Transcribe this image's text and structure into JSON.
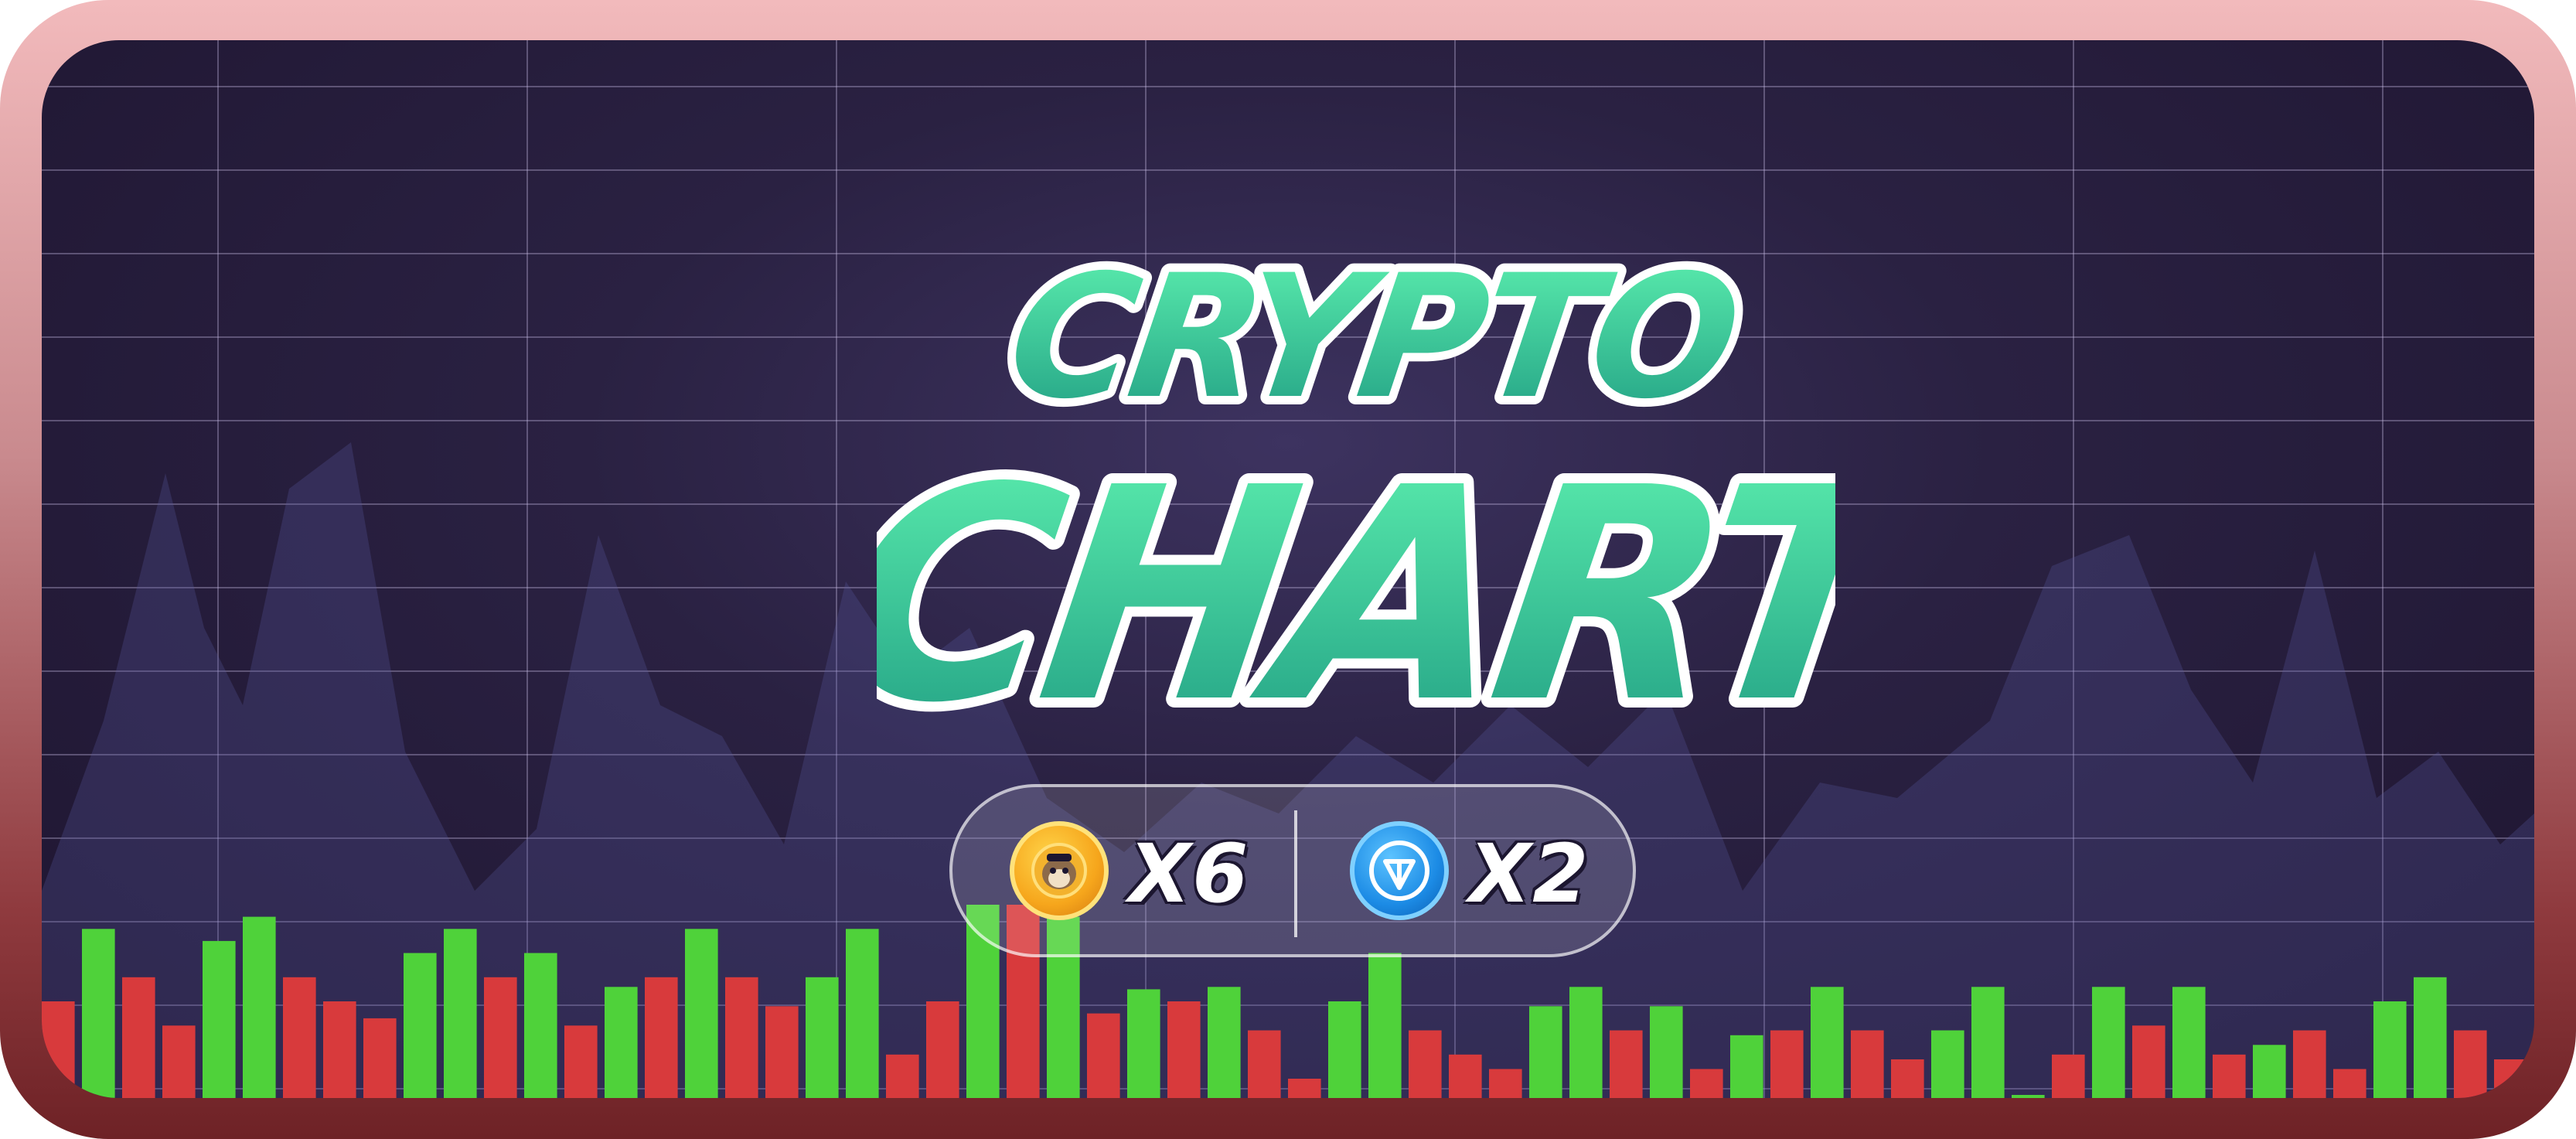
{
  "title": {
    "line1": "CRYPTO",
    "line2": "CHART"
  },
  "rewards": [
    {
      "icon": "hamster-coin-icon",
      "multiplier": "X6"
    },
    {
      "icon": "ton-coin-icon",
      "multiplier": "X2"
    }
  ],
  "colors": {
    "title_fill_top": "#5ef2b0",
    "title_fill_bottom": "#1f9c82",
    "bar_up": "#4fd23a",
    "bar_down": "#d83a3c",
    "background": "#2a2142",
    "frame": "#f2babc"
  },
  "chart_data": {
    "type": "bar",
    "values": [
      4,
      7,
      5,
      3,
      6.5,
      7.5,
      5,
      4,
      3.3,
      6,
      7,
      5,
      6,
      3,
      4.6,
      5,
      7,
      5,
      3.8,
      5,
      7,
      1.8,
      4,
      8,
      8,
      7.5,
      3.5,
      4.5,
      4,
      4.6,
      2.8,
      0.8,
      4,
      6,
      2.8,
      1.8,
      1.2,
      3.8,
      4.6,
      2.8,
      3.8,
      1.2,
      2.6,
      2.8,
      4.6,
      2.8,
      1.6,
      2.8,
      4.6,
      0,
      1.8,
      4.6,
      3,
      4.6,
      1.8,
      2.2,
      2.8,
      1.2,
      4,
      5,
      2.8,
      1.6
    ],
    "directions": [
      "down",
      "up",
      "down",
      "down",
      "up",
      "up",
      "down",
      "down",
      "down",
      "up",
      "up",
      "down",
      "up",
      "down",
      "up",
      "down",
      "up",
      "down",
      "down",
      "up",
      "up",
      "down",
      "down",
      "up",
      "down",
      "up",
      "down",
      "up",
      "down",
      "up",
      "down",
      "down",
      "up",
      "up",
      "down",
      "down",
      "down",
      "up",
      "up",
      "down",
      "up",
      "down",
      "up",
      "down",
      "up",
      "down",
      "down",
      "up",
      "up",
      "up",
      "down",
      "up",
      "down",
      "up",
      "down",
      "up",
      "down",
      "down",
      "up",
      "up",
      "down",
      "down"
    ]
  }
}
